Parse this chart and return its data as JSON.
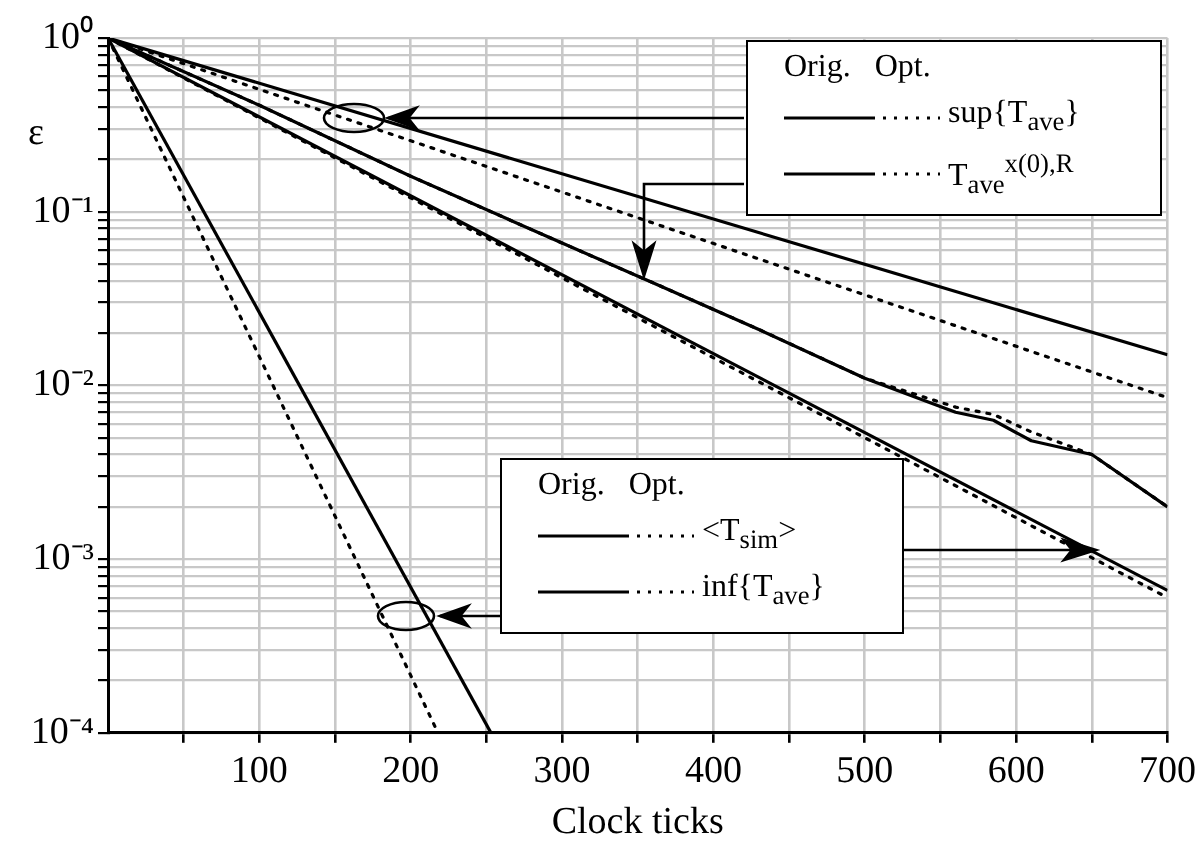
{
  "chart_data": {
    "type": "line",
    "xlabel": "Clock ticks",
    "ylabel": "ε",
    "legend_title": "Orig.   Opt.",
    "log": "y",
    "grid": true,
    "legend": "top right",
    "marker": "none",
    "xlim": [
      0,
      700
    ],
    "ylim": [
      0.0001,
      1
    ],
    "xticks": [
      {
        "value": 50,
        "label": null
      },
      100,
      {
        "value": 150,
        "label": null
      },
      200,
      {
        "value": 250,
        "label": null
      },
      300,
      {
        "value": 350,
        "label": null
      },
      400,
      {
        "value": 450,
        "label": null
      },
      500,
      {
        "value": 550,
        "label": null
      },
      600,
      {
        "value": 650,
        "label": null
      },
      700
    ],
    "yticks": [
      {
        "value": 0.0001,
        "label": "10⁻⁴"
      },
      {
        "value": 0.0002,
        "label": null
      },
      {
        "value": 0.0003,
        "label": null
      },
      {
        "value": 0.0004,
        "label": null
      },
      {
        "value": 0.0005,
        "label": null
      },
      {
        "value": 0.0006,
        "label": null
      },
      {
        "value": 0.0007,
        "label": null
      },
      {
        "value": 0.0008,
        "label": null
      },
      {
        "value": 0.0009,
        "label": null
      },
      {
        "value": 0.001,
        "label": "10⁻³"
      },
      {
        "value": 0.002,
        "label": null
      },
      {
        "value": 0.003,
        "label": null
      },
      {
        "value": 0.004,
        "label": null
      },
      {
        "value": 0.005,
        "label": null
      },
      {
        "value": 0.006,
        "label": null
      },
      {
        "value": 0.007,
        "label": null
      },
      {
        "value": 0.008,
        "label": null
      },
      {
        "value": 0.009,
        "label": null
      },
      {
        "value": 0.01,
        "label": "10⁻²"
      },
      {
        "value": 0.02,
        "label": null
      },
      {
        "value": 0.03,
        "label": null
      },
      {
        "value": 0.04,
        "label": null
      },
      {
        "value": 0.05,
        "label": null
      },
      {
        "value": 0.06,
        "label": null
      },
      {
        "value": 0.07,
        "label": null
      },
      {
        "value": 0.08,
        "label": null
      },
      {
        "value": 0.09,
        "label": null
      },
      {
        "value": 0.1,
        "label": "10⁻¹"
      },
      {
        "value": 0.2,
        "label": null
      },
      {
        "value": 0.3,
        "label": null
      },
      {
        "value": 0.4,
        "label": null
      },
      {
        "value": 0.5,
        "label": null
      },
      {
        "value": 0.6,
        "label": null
      },
      {
        "value": 0.7,
        "label": null
      },
      {
        "value": 0.8,
        "label": null
      },
      {
        "value": 0.9,
        "label": null
      },
      {
        "value": 1,
        "label": "10⁰"
      }
    ],
    "series": [
      {
        "name": "sup{T$_{ave}$}",
        "color": "#000000",
        "line_style": "solid",
        "x": [
          0,
          700
        ],
        "values": [
          1,
          0.015
        ]
      },
      {
        "color": "#000000",
        "line_style": "dotted",
        "x": [
          0,
          700
        ],
        "values": [
          1,
          0.0085
        ]
      },
      {
        "name": "T$_{ave}$$^{x(0),R}$",
        "color": "#000000",
        "line_style": "solid",
        "x": [
          0,
          100,
          200,
          300,
          360,
          430,
          500,
          560,
          585,
          610,
          650,
          700
        ],
        "values": [
          1,
          0.41,
          0.16,
          0.066,
          0.039,
          0.021,
          0.011,
          0.007,
          0.0063,
          0.0048,
          0.004,
          0.002
        ]
      },
      {
        "color": "#000000",
        "line_style": "dotted",
        "x": [
          0,
          100,
          200,
          300,
          360,
          430,
          500,
          560,
          585,
          610,
          650,
          700
        ],
        "values": [
          1,
          0.41,
          0.16,
          0.066,
          0.039,
          0.021,
          0.011,
          0.0075,
          0.0068,
          0.0054,
          0.004,
          0.002
        ]
      },
      {
        "name": "<T$_{sim}$>",
        "color": "#000000",
        "line_style": "solid",
        "x": [
          0,
          700
        ],
        "values": [
          1,
          0.00066
        ]
      },
      {
        "color": "#000000",
        "line_style": "dotted",
        "x": [
          0,
          700
        ],
        "values": [
          1,
          0.0006
        ]
      },
      {
        "name": "inf{T$_{ave}$}",
        "color": "#000000",
        "line_style": "solid",
        "x": [
          0,
          253
        ],
        "values": [
          1,
          0.0001
        ]
      },
      {
        "color": "#000000",
        "line_style": "dotted",
        "x": [
          0,
          218
        ],
        "values": [
          1,
          0.0001
        ]
      }
    ]
  }
}
